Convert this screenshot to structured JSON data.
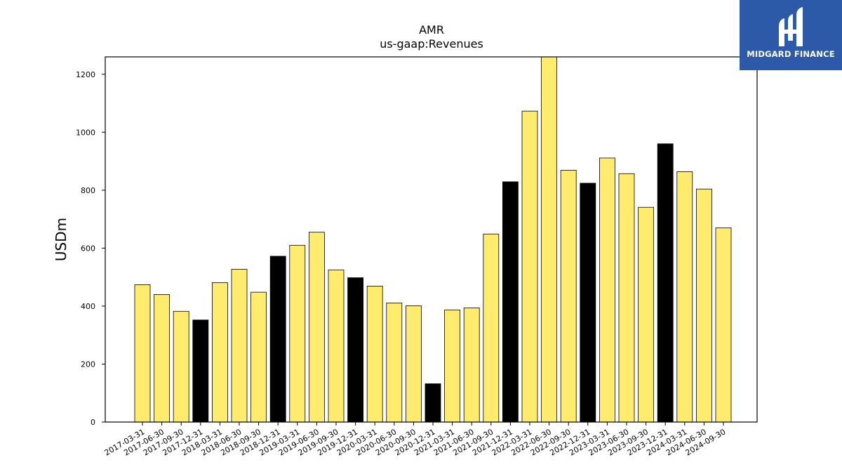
{
  "logo": {
    "text": "MIDGARD FINANCE"
  },
  "chart_data": {
    "type": "bar",
    "title": "AMR",
    "subtitle": "us-gaap:Revenues",
    "xlabel": "",
    "ylabel": "USDm",
    "ylim": [
      0,
      1260
    ],
    "yticks": [
      0,
      200,
      400,
      600,
      800,
      1000,
      1200
    ],
    "colors": {
      "default": "#ffec6e",
      "highlight": "#000000",
      "edge": "#000000"
    },
    "categories": [
      "2017-03-31",
      "2017-06-30",
      "2017-09-30",
      "2017-12-31",
      "2018-03-31",
      "2018-06-30",
      "2018-09-30",
      "2018-12-31",
      "2019-03-31",
      "2019-06-30",
      "2019-09-30",
      "2019-12-31",
      "2020-03-31",
      "2020-06-30",
      "2020-09-30",
      "2020-12-31",
      "2021-03-31",
      "2021-06-30",
      "2021-09-30",
      "2021-12-31",
      "2022-03-31",
      "2022-06-30",
      "2022-09-30",
      "2022-12-31",
      "2023-03-31",
      "2023-06-30",
      "2023-09-30",
      "2023-12-31",
      "2024-03-31",
      "2024-06-30",
      "2024-09-30"
    ],
    "values": [
      474,
      440,
      382,
      352,
      481,
      527,
      448,
      572,
      610,
      655,
      525,
      498,
      469,
      411,
      401,
      132,
      387,
      394,
      649,
      829,
      1073,
      1265,
      869,
      824,
      911,
      857,
      741,
      960,
      864,
      804,
      670
    ],
    "highlight": [
      false,
      false,
      false,
      true,
      false,
      false,
      false,
      true,
      false,
      false,
      false,
      true,
      false,
      false,
      false,
      true,
      false,
      false,
      false,
      true,
      false,
      false,
      false,
      true,
      false,
      false,
      false,
      true,
      false,
      false,
      false
    ]
  }
}
